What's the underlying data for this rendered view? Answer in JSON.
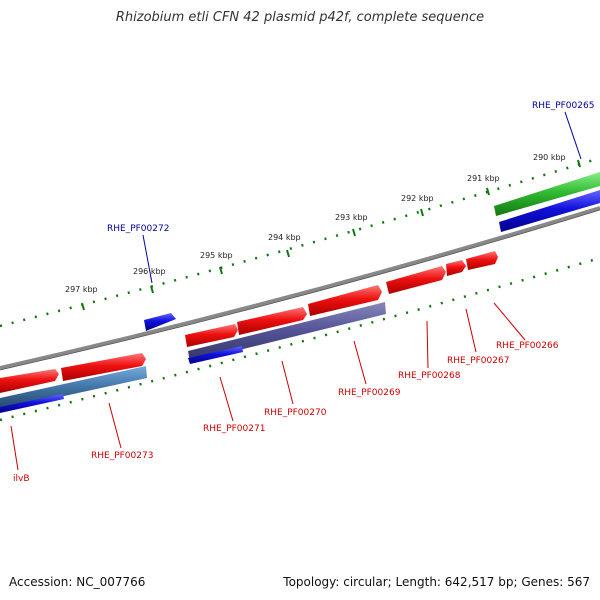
{
  "title": "Rhizobium etli CFN 42 plasmid p42f, complete sequence",
  "footer": {
    "accession": "Accession: NC_007766",
    "summary": "Topology: circular; Length: 642,517 bp; Genes: 567"
  },
  "colors": {
    "forward_cds": "#ee1111",
    "reverse_cds": "#1111dd",
    "cog_green": "#33bb33",
    "cog_purple": "#555599",
    "cog_steelblue": "#4477aa",
    "backbone": "#888888",
    "tick_mark": "#117711",
    "label_forward": "#cc0000",
    "label_reverse": "#000099"
  },
  "ticks": [
    {
      "label": "290 kbp"
    },
    {
      "label": "291 kbp"
    },
    {
      "label": "292 kbp"
    },
    {
      "label": "293 kbp"
    },
    {
      "label": "294 kbp"
    },
    {
      "label": "295 kbp"
    },
    {
      "label": "296 kbp"
    },
    {
      "label": "297 kbp"
    }
  ],
  "gene_labels": [
    {
      "text": "RHE_PF00265",
      "strand": "reverse"
    },
    {
      "text": "RHE_PF00272",
      "strand": "reverse"
    },
    {
      "text": "RHE_PF00266",
      "strand": "forward"
    },
    {
      "text": "RHE_PF00267",
      "strand": "forward"
    },
    {
      "text": "RHE_PF00268",
      "strand": "forward"
    },
    {
      "text": "RHE_PF00269",
      "strand": "forward"
    },
    {
      "text": "RHE_PF00270",
      "strand": "forward"
    },
    {
      "text": "RHE_PF00271",
      "strand": "forward"
    },
    {
      "text": "RHE_PF00273",
      "strand": "forward"
    },
    {
      "text": "ilvB",
      "strand": "forward"
    }
  ]
}
